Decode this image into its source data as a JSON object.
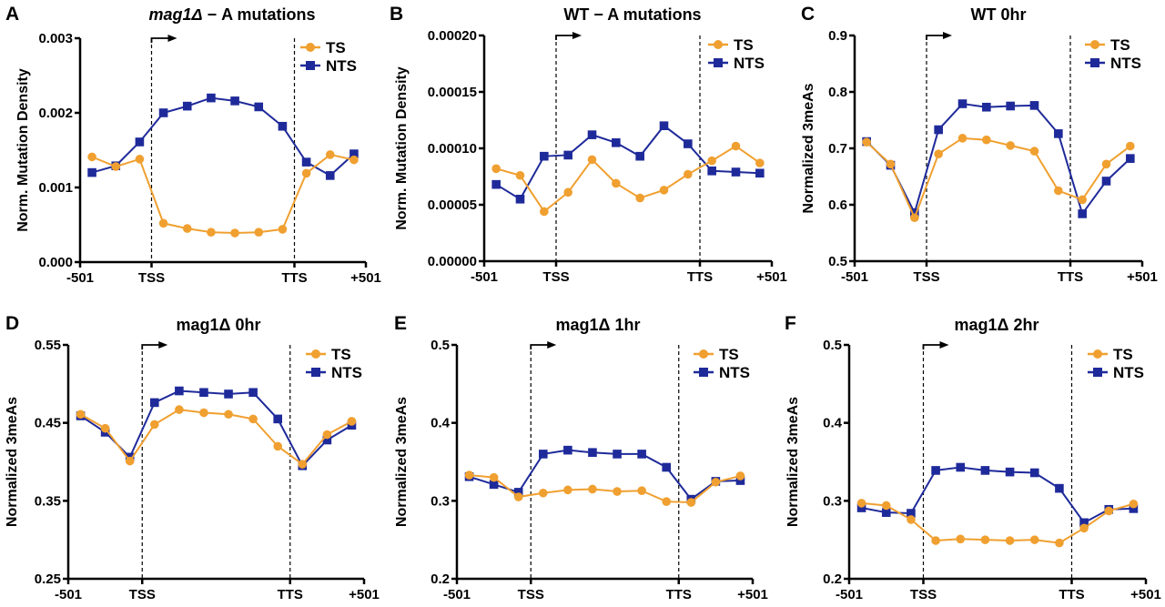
{
  "figure": {
    "colors": {
      "TS": "#F0A030",
      "NTS": "#1F2A9A"
    },
    "legend": [
      "TS",
      "NTS"
    ],
    "legend_placement": "top-right",
    "x_tick_labels": [
      "-501",
      "TSS",
      "TTS",
      "+501"
    ]
  },
  "chart_data": [
    {
      "panel": "A",
      "type": "line",
      "title_italic": "mag1Δ",
      "title": " − A mutations",
      "xlabel": "",
      "ylabel": "Norm. Mutation Density",
      "ylim": [
        0,
        0.003
      ],
      "yticks": [
        0,
        0.001,
        0.002,
        0.003
      ],
      "ytick_labels": [
        "0.000",
        "0.001",
        "0.002",
        "0.003"
      ],
      "x_bins": 12,
      "series": [
        {
          "name": "TS",
          "marker": "circle",
          "values": [
            0.00141,
            0.00128,
            0.00138,
            0.00052,
            0.00045,
            0.0004,
            0.00039,
            0.0004,
            0.00044,
            0.00119,
            0.00144,
            0.00137
          ]
        },
        {
          "name": "NTS",
          "marker": "square",
          "values": [
            0.0012,
            0.00129,
            0.00161,
            0.002,
            0.00209,
            0.0022,
            0.00216,
            0.00208,
            0.00182,
            0.00134,
            0.00116,
            0.00145
          ]
        }
      ]
    },
    {
      "panel": "B",
      "type": "line",
      "title_italic": "",
      "title": "WT − A mutations",
      "xlabel": "",
      "ylabel": "Norm. Mutation Density",
      "ylim": [
        0,
        0.0002
      ],
      "yticks": [
        0,
        5e-05,
        0.0001,
        0.00015,
        0.0002
      ],
      "ytick_labels": [
        "0.00000",
        "0.00005",
        "0.00010",
        "0.00015",
        "0.00020"
      ],
      "x_bins": 12,
      "series": [
        {
          "name": "TS",
          "marker": "circle",
          "values": [
            8.2e-05,
            7.6e-05,
            4.4e-05,
            6.1e-05,
            9e-05,
            6.9e-05,
            5.6e-05,
            6.3e-05,
            7.7e-05,
            8.9e-05,
            0.000102,
            8.7e-05
          ]
        },
        {
          "name": "NTS",
          "marker": "square",
          "values": [
            6.8e-05,
            5.5e-05,
            9.3e-05,
            9.4e-05,
            0.000112,
            0.000105,
            9.3e-05,
            0.00012,
            0.000104,
            8e-05,
            7.9e-05,
            7.8e-05
          ]
        }
      ]
    },
    {
      "panel": "C",
      "type": "line",
      "title_italic": "",
      "title": "WT 0hr",
      "xlabel": "",
      "ylabel": "Normalized 3meAs",
      "ylim": [
        0.5,
        0.9
      ],
      "yticks": [
        0.5,
        0.6,
        0.7,
        0.8,
        0.9
      ],
      "ytick_labels": [
        "0.5",
        "0.6",
        "0.7",
        "0.8",
        "0.9"
      ],
      "x_bins": 12,
      "series": [
        {
          "name": "TS",
          "marker": "circle",
          "values": [
            0.711,
            0.672,
            0.577,
            0.69,
            0.718,
            0.715,
            0.705,
            0.695,
            0.625,
            0.609,
            0.672,
            0.704
          ]
        },
        {
          "name": "NTS",
          "marker": "square",
          "values": [
            0.712,
            0.67,
            0.586,
            0.733,
            0.779,
            0.773,
            0.775,
            0.776,
            0.726,
            0.584,
            0.642,
            0.682
          ]
        }
      ]
    },
    {
      "panel": "D",
      "type": "line",
      "title_italic": "",
      "title": "mag1Δ 0hr",
      "xlabel": "",
      "ylabel": "Normalized 3meAs",
      "ylim": [
        0.25,
        0.55
      ],
      "yticks": [
        0.25,
        0.35,
        0.45,
        0.55
      ],
      "ytick_labels": [
        "0.25",
        "0.35",
        "0.45",
        "0.55"
      ],
      "x_bins": 12,
      "series": [
        {
          "name": "TS",
          "marker": "circle",
          "values": [
            0.461,
            0.443,
            0.401,
            0.448,
            0.467,
            0.463,
            0.461,
            0.455,
            0.42,
            0.397,
            0.435,
            0.452
          ]
        },
        {
          "name": "NTS",
          "marker": "square",
          "values": [
            0.459,
            0.438,
            0.406,
            0.476,
            0.491,
            0.489,
            0.487,
            0.489,
            0.455,
            0.395,
            0.428,
            0.447
          ]
        }
      ]
    },
    {
      "panel": "E",
      "type": "line",
      "title_italic": "",
      "title": "mag1Δ 1hr",
      "xlabel": "",
      "ylabel": "Normalized 3meAs",
      "ylim": [
        0.2,
        0.5
      ],
      "yticks": [
        0.2,
        0.3,
        0.4,
        0.5
      ],
      "ytick_labels": [
        "0.2",
        "0.3",
        "0.4",
        "0.5"
      ],
      "x_bins": 12,
      "series": [
        {
          "name": "TS",
          "marker": "circle",
          "values": [
            0.333,
            0.33,
            0.305,
            0.31,
            0.314,
            0.315,
            0.312,
            0.313,
            0.299,
            0.298,
            0.324,
            0.332
          ]
        },
        {
          "name": "NTS",
          "marker": "square",
          "values": [
            0.331,
            0.321,
            0.311,
            0.36,
            0.365,
            0.362,
            0.36,
            0.36,
            0.343,
            0.302,
            0.325,
            0.326
          ]
        }
      ]
    },
    {
      "panel": "F",
      "type": "line",
      "title_italic": "",
      "title": "mag1Δ 2hr",
      "xlabel": "",
      "ylabel": "Normalized 3meAs",
      "ylim": [
        0.2,
        0.5
      ],
      "yticks": [
        0.2,
        0.3,
        0.4,
        0.5
      ],
      "ytick_labels": [
        "0.2",
        "0.3",
        "0.4",
        "0.5"
      ],
      "x_bins": 12,
      "series": [
        {
          "name": "TS",
          "marker": "circle",
          "values": [
            0.297,
            0.294,
            0.276,
            0.249,
            0.251,
            0.25,
            0.249,
            0.25,
            0.246,
            0.265,
            0.287,
            0.296
          ]
        },
        {
          "name": "NTS",
          "marker": "square",
          "values": [
            0.291,
            0.285,
            0.284,
            0.339,
            0.343,
            0.339,
            0.337,
            0.336,
            0.316,
            0.272,
            0.289,
            0.29
          ]
        }
      ]
    }
  ]
}
